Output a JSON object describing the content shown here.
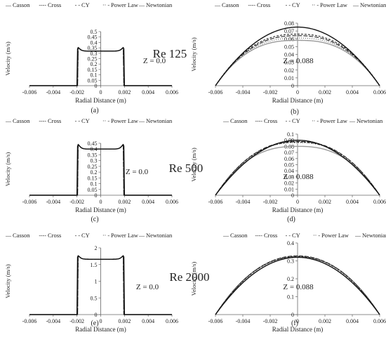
{
  "chart_data": [
    {
      "type": "line",
      "panel_label": "(a)",
      "annotation": "Z = 0.0",
      "reynolds_label": "Re 125",
      "xlabel": "Radial Distance (m)",
      "ylabel": "Velocity (m/s)",
      "xlim": [
        -0.006,
        0.006
      ],
      "ylim": [
        0,
        0.5
      ],
      "xticks": [
        "-0.006",
        "-0.004",
        "-0.002",
        "0",
        "0.002",
        "0.004",
        "0.006"
      ],
      "yticks": [
        "0",
        "0.05",
        "0.1",
        "0.15",
        "0.2",
        "0.25",
        "0.3",
        "0.35",
        "0.4",
        "0.45",
        "0.5"
      ],
      "legend": [
        "Casson",
        "Cross",
        "CY",
        "Power Law",
        "Newtonian"
      ],
      "grid": false,
      "profile": {
        "kind": "plug",
        "R": 0.00195,
        "center": 0.32,
        "peak": 0.345,
        "sharpness": 40
      }
    },
    {
      "type": "line",
      "panel_label": "(b)",
      "annotation": "Z = 0.088",
      "xlabel": "Radial Distance (m)",
      "ylabel": "Velocity (m/s)",
      "xlim": [
        -0.006,
        0.006
      ],
      "ylim": [
        0,
        0.08
      ],
      "xticks": [
        "-0.006",
        "-0.004",
        "-0.002",
        "0",
        "0.002",
        "0.004",
        "0.006"
      ],
      "yticks": [
        "0",
        "0.01",
        "0.02",
        "0.03",
        "0.04",
        "0.05",
        "0.06",
        "0.07",
        "0.08"
      ],
      "legend": [
        "Casson",
        "Cross",
        "CY",
        "Power Law",
        "Newtonian"
      ],
      "grid": false,
      "profile": {
        "kind": "parabola",
        "R": 0.006,
        "peaks": [
          0.058,
          0.066,
          0.064,
          0.061,
          0.075
        ],
        "exponents": [
          2.6,
          2.4,
          2.4,
          2.5,
          2.0
        ]
      }
    },
    {
      "type": "line",
      "panel_label": "(c)",
      "annotation": "Z = 0.0",
      "reynolds_label": "Re 500",
      "xlabel": "Radial Distance (m)",
      "ylabel": "Velocity (m/s)",
      "xlim": [
        -0.006,
        0.006
      ],
      "ylim": [
        0,
        0.45
      ],
      "xticks": [
        "-0.006",
        "-0.004",
        "-0.002",
        "0",
        "0.002",
        "0.004",
        "0.006"
      ],
      "yticks": [
        "0",
        "0.05",
        "0.1",
        "0.15",
        "0.2",
        "0.25",
        "0.3",
        "0.35",
        "0.4",
        "0.45"
      ],
      "legend": [
        "Casson",
        "Cross",
        "CY",
        "Power Law",
        "Newtonian"
      ],
      "grid": false,
      "profile": {
        "kind": "plug",
        "R": 0.00195,
        "center": 0.4,
        "peak": 0.43,
        "sharpness": 40
      }
    },
    {
      "type": "line",
      "panel_label": "(d)",
      "annotation": "Z = 0.088",
      "xlabel": "Radial Distance (m)",
      "ylabel": "Velocity (m/s)",
      "xlim": [
        -0.006,
        0.006
      ],
      "ylim": [
        0,
        0.1
      ],
      "xticks": [
        "-0.006",
        "-0.004",
        "-0.002",
        "0",
        "0.002",
        "0.004",
        "0.006"
      ],
      "yticks": [
        "0",
        "0.01",
        "0.02",
        "0.03",
        "0.04",
        "0.05",
        "0.06",
        "0.07",
        "0.08",
        "0.09",
        "0.1"
      ],
      "legend": [
        "Casson",
        "Cross",
        "CY",
        "Power Law",
        "Newtonian"
      ],
      "grid": false,
      "profile": {
        "kind": "parabola",
        "R": 0.006,
        "peaks": [
          0.08,
          0.087,
          0.088,
          0.086,
          0.09
        ],
        "exponents": [
          2.5,
          2.3,
          2.3,
          2.4,
          2.0
        ]
      }
    },
    {
      "type": "line",
      "panel_label": "(e)",
      "annotation": "Z = 0.0",
      "reynolds_label": "Re 2000",
      "xlabel": "Radial Distance (m)",
      "ylabel": "Velocity (m/s)",
      "xlim": [
        -0.006,
        0.006
      ],
      "ylim": [
        0,
        2
      ],
      "xticks": [
        "-0.006",
        "-0.004",
        "-0.002",
        "0",
        "0.002",
        "0.004",
        "0.006"
      ],
      "yticks": [
        "0",
        "0.5",
        "1",
        "1.5",
        "2"
      ],
      "legend": [
        "Casson",
        "Cross",
        "CY",
        "Power Law",
        "Newtonian"
      ],
      "grid": false,
      "profile": {
        "kind": "plug",
        "R": 0.00195,
        "center": 1.66,
        "peak": 1.74,
        "sharpness": 40
      }
    },
    {
      "type": "line",
      "panel_label": "(f)",
      "annotation": "Z = 0.088",
      "xlabel": "Radial Distance (m)",
      "ylabel": "Velocity (m/s)",
      "xlim": [
        -0.006,
        0.006
      ],
      "ylim": [
        0,
        0.4
      ],
      "xticks": [
        "-0.006",
        "-0.004",
        "-0.002",
        "0",
        "0.002",
        "0.004",
        "0.006"
      ],
      "yticks": [
        "0",
        "0.1",
        "0.2",
        "0.3",
        "0.4"
      ],
      "legend": [
        "Casson",
        "Cross",
        "CY",
        "Power Law",
        "Newtonian"
      ],
      "grid": false,
      "profile": {
        "kind": "parabola",
        "R": 0.006,
        "peaks": [
          0.322,
          0.325,
          0.328,
          0.326,
          0.32
        ],
        "exponents": [
          2.2,
          2.1,
          2.1,
          2.15,
          2.0
        ]
      }
    }
  ]
}
